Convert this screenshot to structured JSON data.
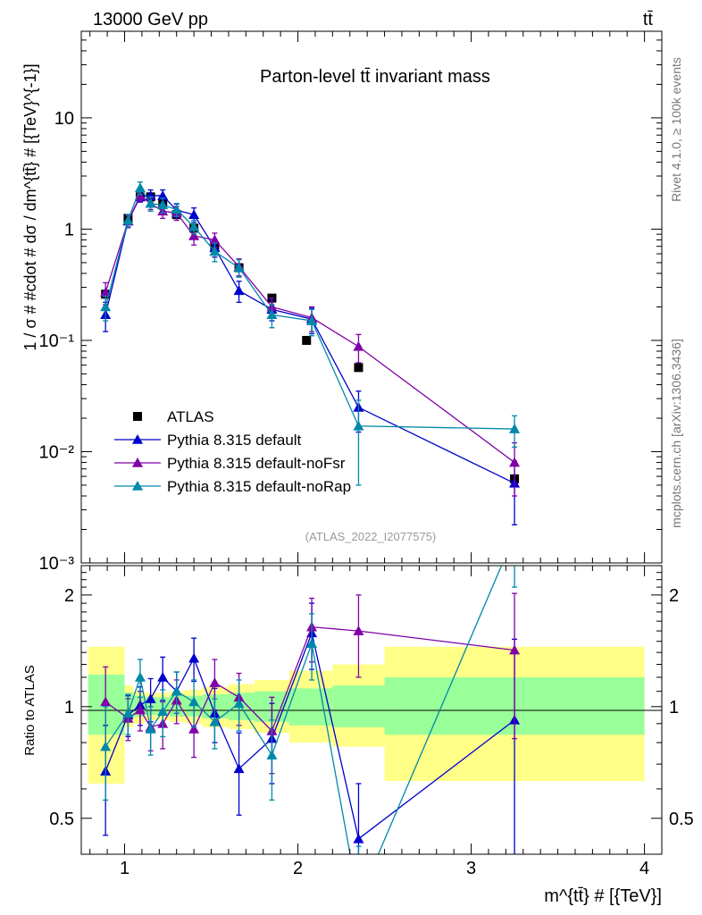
{
  "header": {
    "left": "13000 GeV pp",
    "right": "tt̄"
  },
  "side_labels": {
    "rivet": "Rivet 4.1.0, ≥ 100k events",
    "mcplots": "mcplots.cern.ch [arXiv:1306.3436]"
  },
  "colors": {
    "atlas": "#000000",
    "default": "#0000cc",
    "noFsr": "#8000a8",
    "noRap": "#0088aa",
    "band_inner": "#99ff99",
    "band_outer": "#ffff88"
  },
  "chart_data": [
    {
      "type": "scatter",
      "panel": "main",
      "title": "Parton-level tt̄ invariant mass",
      "watermark": "(ATLAS_2022_I2077575)",
      "ylabel": "1 / σ # #cdot # dσ / dm^{tt̄} # [{TeV}^{-1}]",
      "xlabel": "",
      "yscale": "log",
      "xlim": [
        0.75,
        4.1
      ],
      "ylim": [
        0.001,
        60
      ],
      "y_tick_labels": [
        "10⁻³",
        "10⁻²",
        "10⁻¹",
        "1",
        "10"
      ],
      "legend_position": "lower-left",
      "series": [
        {
          "name": "ATLAS",
          "key": "atlas",
          "marker": "square",
          "x": [
            0.89,
            1.02,
            1.09,
            1.15,
            1.22,
            1.3,
            1.4,
            1.52,
            1.66,
            1.85,
            2.05,
            2.35,
            3.25
          ],
          "y": [
            0.26,
            1.25,
            1.95,
            1.95,
            1.7,
            1.35,
            1.02,
            0.7,
            0.45,
            0.24,
            0.1,
            0.057,
            0.0057
          ],
          "err": [
            0,
            0,
            0,
            0,
            0,
            0,
            0,
            0,
            0,
            0,
            0,
            0,
            0
          ]
        },
        {
          "name": "Pythia 8.315 default",
          "key": "default",
          "marker": "triangle",
          "x": [
            0.89,
            1.02,
            1.09,
            1.15,
            1.22,
            1.3,
            1.4,
            1.52,
            1.66,
            1.85,
            2.08,
            2.35,
            3.25
          ],
          "y": [
            0.17,
            1.18,
            1.95,
            2.0,
            2.0,
            1.48,
            1.35,
            0.68,
            0.28,
            0.19,
            0.155,
            0.025,
            0.0052
          ],
          "err": [
            0.05,
            0.15,
            0.2,
            0.25,
            0.25,
            0.2,
            0.2,
            0.12,
            0.06,
            0.04,
            0.04,
            0.01,
            0.003
          ]
        },
        {
          "name": "Pythia 8.315 default-noFsr",
          "key": "noFsr",
          "marker": "triangle",
          "x": [
            0.89,
            1.02,
            1.09,
            1.15,
            1.22,
            1.3,
            1.4,
            1.52,
            1.66,
            1.85,
            2.08,
            2.35,
            3.25
          ],
          "y": [
            0.27,
            1.18,
            2.0,
            1.7,
            1.45,
            1.4,
            0.87,
            0.8,
            0.46,
            0.2,
            0.16,
            0.088,
            0.008
          ],
          "err": [
            0.06,
            0.15,
            0.2,
            0.2,
            0.2,
            0.2,
            0.15,
            0.12,
            0.08,
            0.04,
            0.04,
            0.025,
            0.004
          ]
        },
        {
          "name": "Pythia 8.315 default-noRap",
          "key": "noRap",
          "marker": "triangle",
          "x": [
            0.89,
            1.02,
            1.09,
            1.15,
            1.22,
            1.3,
            1.4,
            1.52,
            1.66,
            1.85,
            2.08,
            2.35,
            3.25
          ],
          "y": [
            0.2,
            1.2,
            2.35,
            1.7,
            1.65,
            1.5,
            1.05,
            0.63,
            0.45,
            0.17,
            0.15,
            0.017,
            0.016
          ],
          "err": [
            0.05,
            0.15,
            0.3,
            0.25,
            0.25,
            0.2,
            0.15,
            0.12,
            0.08,
            0.04,
            0.04,
            0.012,
            0.005
          ]
        }
      ]
    },
    {
      "type": "line",
      "panel": "ratio",
      "ylabel": "Ratio to ATLAS",
      "xlabel": "m^{tt̄} # [{TeV}]",
      "yscale": "log",
      "xlim": [
        0.75,
        4.1
      ],
      "ylim": [
        0.4,
        2.4
      ],
      "x_ticks": [
        1,
        2,
        3,
        4
      ],
      "x_tick_labels": [
        "1",
        "2",
        "3",
        "4"
      ],
      "y_ticks": [
        0.5,
        1,
        2
      ],
      "y_tick_labels": [
        "0.5",
        "1",
        "2"
      ],
      "bands": [
        {
          "x0": 0.79,
          "x1": 1.0,
          "inner": [
            0.84,
            1.22
          ],
          "outer": [
            0.62,
            1.45
          ]
        },
        {
          "x0": 1.0,
          "x1": 1.05,
          "inner": [
            0.92,
            1.09
          ],
          "outer": [
            0.88,
            1.14
          ]
        },
        {
          "x0": 1.05,
          "x1": 1.12,
          "inner": [
            0.94,
            1.07
          ],
          "outer": [
            0.9,
            1.1
          ]
        },
        {
          "x0": 1.12,
          "x1": 1.19,
          "inner": [
            0.95,
            1.06
          ],
          "outer": [
            0.92,
            1.09
          ]
        },
        {
          "x0": 1.19,
          "x1": 1.26,
          "inner": [
            0.95,
            1.06
          ],
          "outer": [
            0.92,
            1.09
          ]
        },
        {
          "x0": 1.26,
          "x1": 1.35,
          "inner": [
            0.94,
            1.07
          ],
          "outer": [
            0.91,
            1.1
          ]
        },
        {
          "x0": 1.35,
          "x1": 1.45,
          "inner": [
            0.94,
            1.07
          ],
          "outer": [
            0.9,
            1.11
          ]
        },
        {
          "x0": 1.45,
          "x1": 1.6,
          "inner": [
            0.93,
            1.08
          ],
          "outer": [
            0.88,
            1.13
          ]
        },
        {
          "x0": 1.6,
          "x1": 1.75,
          "inner": [
            0.92,
            1.09
          ],
          "outer": [
            0.87,
            1.15
          ]
        },
        {
          "x0": 1.75,
          "x1": 1.95,
          "inner": [
            0.91,
            1.1
          ],
          "outer": [
            0.85,
            1.18
          ]
        },
        {
          "x0": 1.95,
          "x1": 2.2,
          "inner": [
            0.89,
            1.12
          ],
          "outer": [
            0.8,
            1.25
          ]
        },
        {
          "x0": 2.2,
          "x1": 2.5,
          "inner": [
            0.88,
            1.14
          ],
          "outer": [
            0.78,
            1.3
          ]
        },
        {
          "x0": 2.5,
          "x1": 4.0,
          "inner": [
            0.84,
            1.2
          ],
          "outer": [
            0.63,
            1.45
          ]
        }
      ],
      "series": [
        {
          "name": "Pythia 8.315 default",
          "key": "default",
          "x": [
            0.89,
            1.02,
            1.09,
            1.15,
            1.22,
            1.3,
            1.4,
            1.52,
            1.66,
            1.85,
            2.08,
            2.35,
            3.25
          ],
          "y": [
            0.67,
            0.95,
            1.01,
            1.05,
            1.2,
            1.1,
            1.35,
            0.96,
            0.68,
            0.82,
            1.58,
            0.44,
            0.92
          ],
          "err": [
            0.22,
            0.12,
            0.12,
            0.14,
            0.16,
            0.14,
            0.18,
            0.16,
            0.17,
            0.2,
            0.32,
            0.18,
            0.6
          ]
        },
        {
          "name": "Pythia 8.315 default-noFsr",
          "key": "noFsr",
          "x": [
            0.89,
            1.02,
            1.09,
            1.15,
            1.22,
            1.3,
            1.4,
            1.52,
            1.66,
            1.85,
            2.08,
            2.35,
            3.25
          ],
          "y": [
            1.03,
            0.93,
            0.98,
            0.88,
            0.9,
            1.04,
            0.87,
            1.16,
            1.06,
            0.86,
            1.64,
            1.6,
            1.42
          ],
          "err": [
            0.25,
            0.12,
            0.12,
            0.12,
            0.13,
            0.14,
            0.14,
            0.18,
            0.17,
            0.2,
            0.32,
            0.4,
            0.6
          ]
        },
        {
          "name": "Pythia 8.315 default-noRap",
          "key": "noRap",
          "x": [
            0.89,
            1.02,
            1.09,
            1.15,
            1.22,
            1.3,
            1.4,
            1.52,
            1.66,
            1.85,
            2.08,
            2.35,
            3.25
          ],
          "y": [
            0.78,
            0.96,
            1.2,
            0.87,
            0.97,
            1.1,
            1.03,
            0.91,
            1.02,
            0.74,
            1.48,
            0.3,
            2.9
          ],
          "err": [
            0.22,
            0.12,
            0.14,
            0.13,
            0.14,
            0.14,
            0.15,
            0.14,
            0.16,
            0.18,
            0.3,
            0.12,
            0.8
          ]
        }
      ]
    }
  ]
}
